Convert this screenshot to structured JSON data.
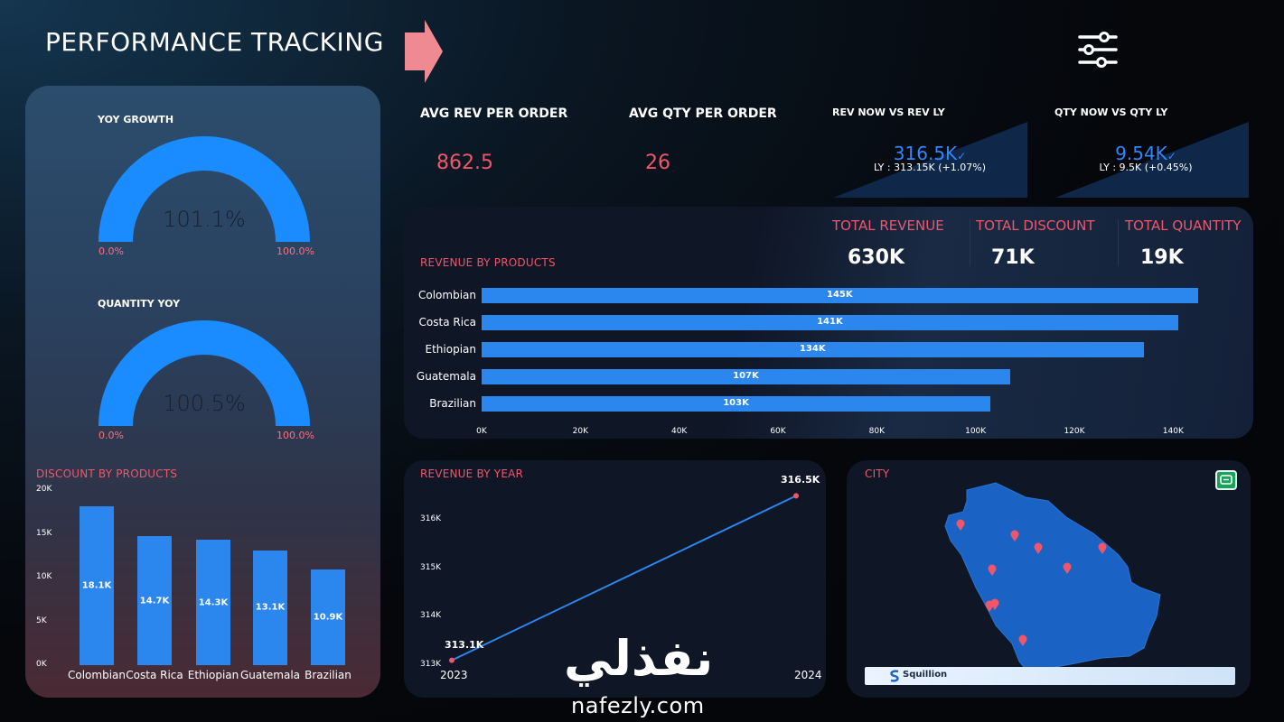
{
  "header": {
    "title": "PERFORMANCE TRACKING",
    "arrow_icon": "arrow-right-icon",
    "filter_icon": "sliders-icon",
    "arrow_color": "#f08a92"
  },
  "gauges": [
    {
      "title": "YOY GROWTH",
      "value": "101.1%",
      "min": "0.0%",
      "max": "100.0%",
      "fill_fraction": 1.0
    },
    {
      "title": "QUANTITY YOY",
      "value": "100.5%",
      "min": "0.0%",
      "max": "100.0%",
      "fill_fraction": 1.0
    }
  ],
  "kpis": {
    "avg_rev": {
      "label": "AVG REV PER ORDER",
      "value": "862.5"
    },
    "avg_qty": {
      "label": "AVG QTY PER ORDER",
      "value": "26"
    },
    "rev_cmp": {
      "label": "REV NOW VS REV LY",
      "value": "316.5K",
      "ly": "LY : 313.15K (+1.07%)"
    },
    "qty_cmp": {
      "label": "QTY NOW VS QTY LY",
      "value": "9.54K",
      "ly": "LY : 9.5K (+0.45%)"
    }
  },
  "totals": [
    {
      "label": "TOTAL REVENUE",
      "value": "630K"
    },
    {
      "label": "TOTAL DISCOUNT",
      "value": "71K"
    },
    {
      "label": "TOTAL QUANTITY",
      "value": "19K"
    }
  ],
  "sections": {
    "revenue_by_products": "REVENUE BY PRODUCTS",
    "discount_by_products": "DISCOUNT BY PRODUCTS",
    "revenue_by_year": "REVENUE BY YEAR",
    "city": "CITY"
  },
  "map": {
    "brand": "Squillion",
    "land_color": "#1a63c4",
    "pin_color": "#f0566a"
  },
  "watermark": {
    "arabic": "نفذلي",
    "latin": "nafezly.com"
  },
  "colors": {
    "accent": "#f0566a",
    "bar": "#2b86ee"
  },
  "chart_data": [
    {
      "type": "bar",
      "orientation": "horizontal",
      "title": "REVENUE BY PRODUCTS",
      "categories": [
        "Colombian",
        "Costa Rica",
        "Ethiopian",
        "Guatemala",
        "Brazilian"
      ],
      "values": [
        145000,
        141000,
        134000,
        107000,
        103000
      ],
      "data_labels": [
        "145K",
        "141K",
        "134K",
        "107K",
        "103K"
      ],
      "xlim": [
        0,
        150000
      ],
      "ticks": [
        "0K",
        "20K",
        "40K",
        "60K",
        "80K",
        "100K",
        "120K",
        "140K"
      ],
      "tick_values": [
        0,
        20000,
        40000,
        60000,
        80000,
        100000,
        120000,
        140000
      ]
    },
    {
      "type": "bar",
      "orientation": "vertical",
      "title": "DISCOUNT BY PRODUCTS",
      "categories": [
        "Colombian",
        "Costa Rica",
        "Ethiopian",
        "Guatemala",
        "Brazilian"
      ],
      "values": [
        18100,
        14700,
        14300,
        13100,
        10900
      ],
      "data_labels": [
        "18.1K",
        "14.7K",
        "14.3K",
        "13.1K",
        "10.9K"
      ],
      "ylim": [
        0,
        20000
      ],
      "ticks": [
        "0K",
        "5K",
        "10K",
        "15K",
        "20K"
      ],
      "tick_values": [
        0,
        5000,
        10000,
        15000,
        20000
      ]
    },
    {
      "type": "line",
      "title": "REVENUE BY YEAR",
      "x": [
        "2023",
        "2024"
      ],
      "values": [
        313100,
        316500
      ],
      "data_labels": [
        "313.1K",
        "316.5K"
      ],
      "ylim": [
        313000,
        316600
      ],
      "ticks": [
        "313K",
        "314K",
        "315K",
        "316K"
      ],
      "tick_values": [
        313000,
        314000,
        315000,
        316000
      ]
    }
  ]
}
